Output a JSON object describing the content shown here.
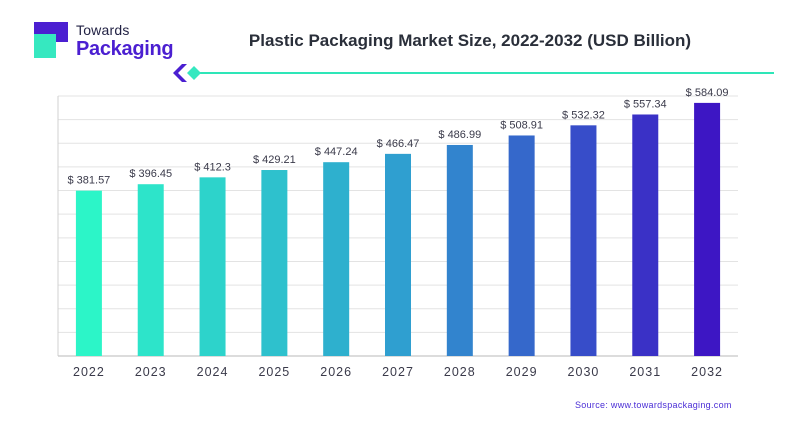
{
  "brand": {
    "line1": "Towards",
    "line2": "Packaging",
    "logo_colors": {
      "mark_dark": "#4b1fd1",
      "mark_light": "#36e8c0"
    }
  },
  "source": "Source: www.towardspackaging.com",
  "colors": {
    "divider_line": "#2ee6b8",
    "divider_dark": "#4b1fd1",
    "divider_light": "#36e8c0",
    "gradient_start": "#2cf5c8",
    "gradient_mid": "#2f9fd0",
    "gradient_end": "#3d16c4"
  },
  "chart_data": {
    "type": "bar",
    "title": "Plastic Packaging Market Size, 2022-2032 (USD Billion)",
    "xlabel": "",
    "ylabel": "",
    "categories": [
      "2022",
      "2023",
      "2024",
      "2025",
      "2026",
      "2027",
      "2028",
      "2029",
      "2030",
      "2031",
      "2032"
    ],
    "values": [
      381.57,
      396.45,
      412.3,
      429.21,
      447.24,
      466.47,
      486.99,
      508.91,
      532.32,
      557.34,
      584.09
    ],
    "data_labels": [
      "$ 381.57",
      "$ 396.45",
      "$ 412.3",
      "$ 429.21",
      "$ 447.24",
      "$ 466.47",
      "$ 486.99",
      "$ 508.91",
      "$ 532.32",
      "$ 557.34",
      "$ 584.09"
    ],
    "ylim": [
      0,
      600
    ],
    "grid": true,
    "legend": "none"
  }
}
